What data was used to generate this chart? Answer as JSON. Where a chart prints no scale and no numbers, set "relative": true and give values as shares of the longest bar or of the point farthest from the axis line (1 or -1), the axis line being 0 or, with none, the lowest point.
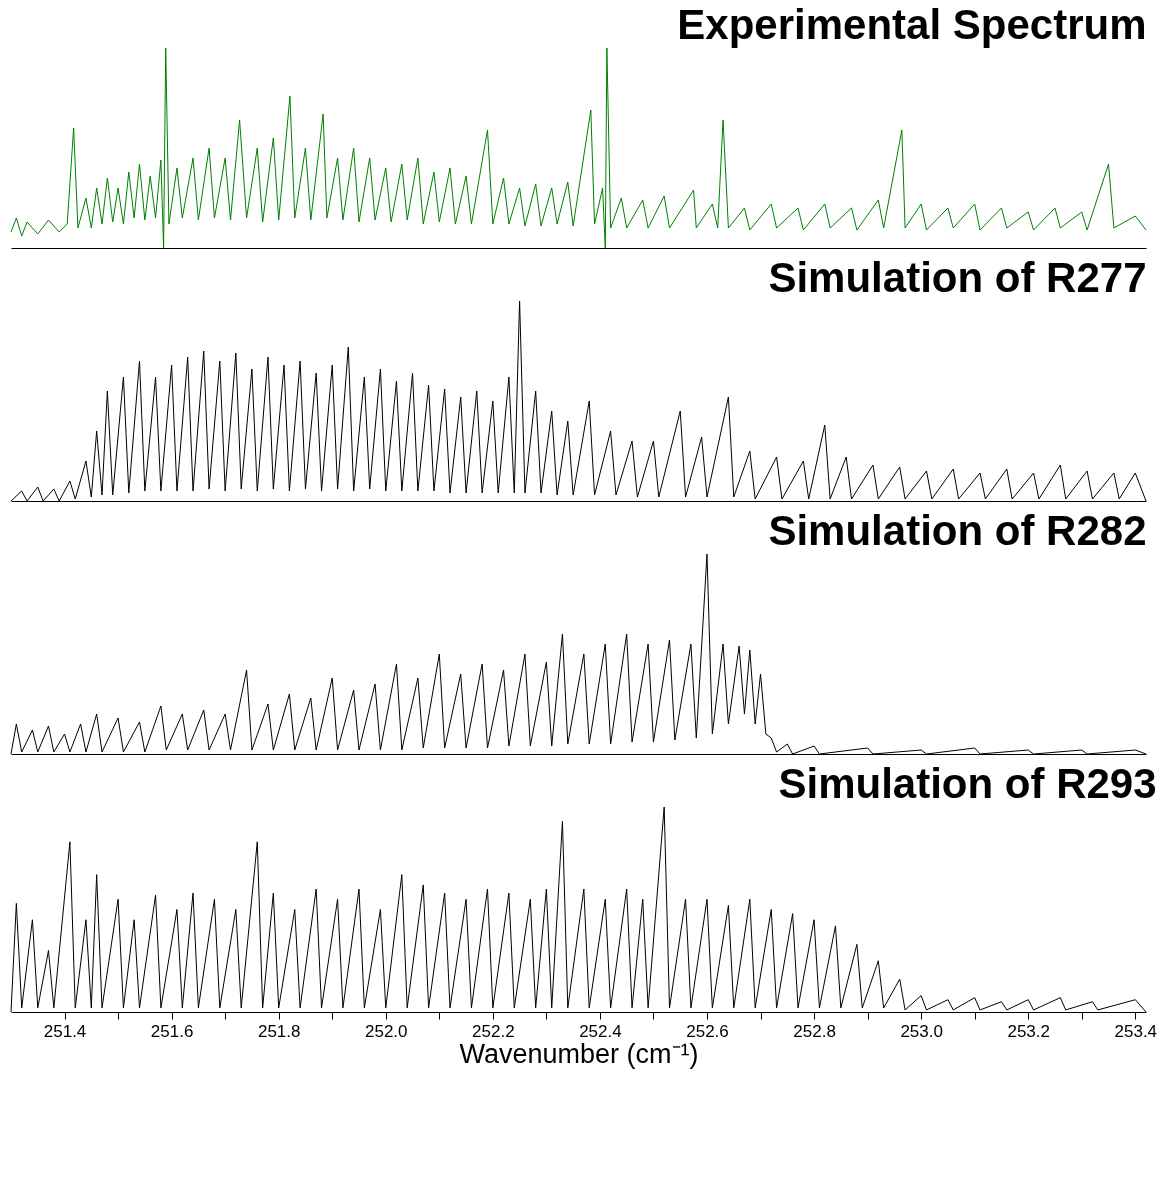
{
  "chart_data": [
    {
      "type": "line",
      "title": "Experimental Spectrum",
      "relative": true,
      "tick_labels": false,
      "xlim": [
        251.3,
        253.42
      ],
      "series": [
        {
          "color": "#008000",
          "x": [
            251.3,
            251.31,
            251.32,
            251.33,
            251.35,
            251.37,
            251.39,
            251.405,
            251.417,
            251.425,
            251.44,
            251.45,
            251.46,
            251.47,
            251.48,
            251.49,
            251.5,
            251.51,
            251.52,
            251.53,
            251.54,
            251.55,
            251.56,
            251.57,
            251.58,
            251.585,
            251.589,
            251.595,
            251.61,
            251.62,
            251.64,
            251.65,
            251.67,
            251.68,
            251.7,
            251.71,
            251.727,
            251.74,
            251.76,
            251.77,
            251.79,
            251.8,
            251.821,
            251.83,
            251.85,
            251.86,
            251.883,
            251.89,
            251.91,
            251.92,
            251.94,
            251.95,
            251.97,
            251.98,
            252.0,
            252.01,
            252.03,
            252.04,
            252.06,
            252.07,
            252.09,
            252.1,
            252.12,
            252.13,
            252.15,
            252.16,
            252.19,
            252.2,
            252.22,
            252.23,
            252.25,
            252.26,
            252.28,
            252.29,
            252.31,
            252.32,
            252.34,
            252.35,
            252.383,
            252.39,
            252.405,
            252.41,
            252.413,
            252.42,
            252.44,
            252.45,
            252.48,
            252.49,
            252.52,
            252.53,
            252.575,
            252.58,
            252.61,
            252.62,
            252.63,
            252.64,
            252.67,
            252.68,
            252.72,
            252.73,
            252.77,
            252.78,
            252.82,
            252.83,
            252.87,
            252.88,
            252.92,
            252.93,
            252.964,
            252.97,
            253.0,
            253.01,
            253.05,
            253.06,
            253.1,
            253.11,
            253.15,
            253.16,
            253.2,
            253.21,
            253.25,
            253.26,
            253.3,
            253.31,
            253.35,
            253.36,
            253.4,
            253.42
          ],
          "values": [
            0.08,
            0.15,
            0.06,
            0.13,
            0.07,
            0.14,
            0.08,
            0.12,
            0.6,
            0.1,
            0.25,
            0.1,
            0.3,
            0.12,
            0.35,
            0.13,
            0.3,
            0.12,
            0.38,
            0.15,
            0.42,
            0.14,
            0.36,
            0.15,
            0.44,
            0.0,
            1.0,
            0.12,
            0.4,
            0.15,
            0.45,
            0.14,
            0.5,
            0.15,
            0.45,
            0.14,
            0.64,
            0.15,
            0.5,
            0.13,
            0.55,
            0.14,
            0.76,
            0.15,
            0.5,
            0.14,
            0.67,
            0.15,
            0.45,
            0.14,
            0.5,
            0.13,
            0.45,
            0.14,
            0.4,
            0.13,
            0.42,
            0.14,
            0.45,
            0.12,
            0.38,
            0.13,
            0.4,
            0.12,
            0.36,
            0.12,
            0.59,
            0.12,
            0.35,
            0.12,
            0.3,
            0.11,
            0.32,
            0.11,
            0.3,
            0.12,
            0.33,
            0.11,
            0.69,
            0.12,
            0.3,
            0.0,
            1.0,
            0.1,
            0.25,
            0.1,
            0.24,
            0.1,
            0.26,
            0.1,
            0.29,
            0.1,
            0.22,
            0.1,
            0.64,
            0.1,
            0.2,
            0.09,
            0.22,
            0.1,
            0.2,
            0.09,
            0.22,
            0.1,
            0.2,
            0.09,
            0.24,
            0.1,
            0.59,
            0.1,
            0.22,
            0.09,
            0.2,
            0.1,
            0.22,
            0.09,
            0.2,
            0.1,
            0.18,
            0.09,
            0.2,
            0.1,
            0.18,
            0.09,
            0.42,
            0.1,
            0.16,
            0.09
          ]
        }
      ]
    },
    {
      "type": "line",
      "title": "Simulation of R277",
      "relative": true,
      "tick_labels": false,
      "xlim": [
        251.3,
        253.42
      ],
      "series": [
        {
          "color": "#000000",
          "x": [
            251.3,
            251.32,
            251.33,
            251.35,
            251.36,
            251.38,
            251.39,
            251.41,
            251.42,
            251.44,
            251.45,
            251.46,
            251.47,
            251.48,
            251.49,
            251.51,
            251.52,
            251.54,
            251.55,
            251.57,
            251.58,
            251.6,
            251.61,
            251.63,
            251.64,
            251.66,
            251.67,
            251.69,
            251.7,
            251.72,
            251.73,
            251.75,
            251.76,
            251.78,
            251.79,
            251.81,
            251.82,
            251.84,
            251.85,
            251.87,
            251.88,
            251.9,
            251.91,
            251.93,
            251.94,
            251.96,
            251.97,
            251.99,
            252.0,
            252.02,
            252.03,
            252.05,
            252.06,
            252.08,
            252.09,
            252.11,
            252.12,
            252.14,
            252.15,
            252.17,
            252.18,
            252.2,
            252.21,
            252.23,
            252.24,
            252.25,
            252.26,
            252.28,
            252.29,
            252.31,
            252.32,
            252.34,
            252.35,
            252.38,
            252.39,
            252.42,
            252.43,
            252.46,
            252.47,
            252.5,
            252.51,
            252.55,
            252.56,
            252.59,
            252.6,
            252.64,
            252.65,
            252.68,
            252.69,
            252.73,
            252.74,
            252.78,
            252.79,
            252.82,
            252.83,
            252.86,
            252.87,
            252.91,
            252.92,
            252.96,
            252.97,
            253.01,
            253.02,
            253.06,
            253.07,
            253.11,
            253.12,
            253.16,
            253.17,
            253.21,
            253.22,
            253.26,
            253.27,
            253.31,
            253.32,
            253.36,
            253.37,
            253.4,
            253.42
          ],
          "values": [
            0.0,
            0.05,
            0.0,
            0.07,
            0.0,
            0.06,
            0.0,
            0.1,
            0.01,
            0.2,
            0.02,
            0.35,
            0.03,
            0.55,
            0.03,
            0.62,
            0.04,
            0.7,
            0.05,
            0.62,
            0.05,
            0.68,
            0.05,
            0.72,
            0.05,
            0.75,
            0.06,
            0.7,
            0.05,
            0.74,
            0.06,
            0.66,
            0.05,
            0.72,
            0.06,
            0.68,
            0.05,
            0.7,
            0.06,
            0.64,
            0.05,
            0.68,
            0.06,
            0.77,
            0.05,
            0.62,
            0.06,
            0.66,
            0.05,
            0.6,
            0.05,
            0.64,
            0.05,
            0.58,
            0.05,
            0.56,
            0.04,
            0.52,
            0.04,
            0.55,
            0.04,
            0.5,
            0.04,
            0.62,
            0.04,
            1.0,
            0.04,
            0.55,
            0.04,
            0.45,
            0.03,
            0.4,
            0.03,
            0.5,
            0.03,
            0.35,
            0.03,
            0.3,
            0.02,
            0.3,
            0.02,
            0.45,
            0.02,
            0.32,
            0.02,
            0.52,
            0.02,
            0.25,
            0.01,
            0.22,
            0.01,
            0.2,
            0.01,
            0.38,
            0.01,
            0.22,
            0.01,
            0.18,
            0.01,
            0.17,
            0.01,
            0.15,
            0.01,
            0.16,
            0.01,
            0.14,
            0.01,
            0.16,
            0.01,
            0.14,
            0.01,
            0.18,
            0.01,
            0.15,
            0.01,
            0.14,
            0.01,
            0.14,
            0.0
          ]
        }
      ]
    },
    {
      "type": "line",
      "title": "Simulation of R282",
      "relative": true,
      "tick_labels": false,
      "xlim": [
        251.3,
        253.42
      ],
      "series": [
        {
          "color": "#000000",
          "x": [
            251.3,
            251.31,
            251.32,
            251.34,
            251.35,
            251.37,
            251.38,
            251.4,
            251.41,
            251.43,
            251.44,
            251.46,
            251.47,
            251.5,
            251.51,
            251.54,
            251.55,
            251.58,
            251.59,
            251.62,
            251.63,
            251.66,
            251.67,
            251.7,
            251.71,
            251.74,
            251.75,
            251.78,
            251.79,
            251.82,
            251.83,
            251.86,
            251.87,
            251.9,
            251.91,
            251.94,
            251.95,
            251.98,
            251.99,
            252.02,
            252.03,
            252.06,
            252.07,
            252.1,
            252.11,
            252.14,
            252.15,
            252.18,
            252.19,
            252.22,
            252.23,
            252.26,
            252.27,
            252.3,
            252.31,
            252.33,
            252.34,
            252.37,
            252.38,
            252.41,
            252.42,
            252.45,
            252.46,
            252.49,
            252.5,
            252.53,
            252.54,
            252.57,
            252.58,
            252.6,
            252.61,
            252.63,
            252.64,
            252.66,
            252.67,
            252.68,
            252.69,
            252.7,
            252.71,
            252.72,
            252.73,
            252.75,
            252.76,
            252.8,
            252.81,
            252.9,
            252.91,
            253.0,
            253.01,
            253.1,
            253.11,
            253.2,
            253.21,
            253.3,
            253.31,
            253.4,
            253.42
          ],
          "values": [
            0.0,
            0.15,
            0.01,
            0.12,
            0.01,
            0.14,
            0.01,
            0.1,
            0.01,
            0.15,
            0.01,
            0.2,
            0.01,
            0.18,
            0.01,
            0.16,
            0.01,
            0.24,
            0.02,
            0.2,
            0.02,
            0.22,
            0.02,
            0.2,
            0.02,
            0.42,
            0.02,
            0.25,
            0.02,
            0.3,
            0.02,
            0.28,
            0.02,
            0.38,
            0.02,
            0.32,
            0.02,
            0.35,
            0.02,
            0.45,
            0.02,
            0.38,
            0.03,
            0.5,
            0.03,
            0.4,
            0.03,
            0.45,
            0.03,
            0.42,
            0.04,
            0.5,
            0.04,
            0.46,
            0.04,
            0.6,
            0.05,
            0.5,
            0.05,
            0.55,
            0.05,
            0.6,
            0.06,
            0.55,
            0.06,
            0.57,
            0.07,
            0.55,
            0.08,
            1.0,
            0.1,
            0.55,
            0.15,
            0.54,
            0.2,
            0.52,
            0.15,
            0.4,
            0.1,
            0.08,
            0.01,
            0.05,
            0.0,
            0.04,
            0.0,
            0.03,
            0.0,
            0.02,
            0.0,
            0.03,
            0.0,
            0.02,
            0.0,
            0.02,
            0.0,
            0.02,
            0.0
          ]
        }
      ]
    },
    {
      "type": "line",
      "title": "Simulation of R293",
      "relative": true,
      "tick_labels": "x",
      "xlabel": "Wavenumber (cm⁻¹)",
      "xlim": [
        251.3,
        253.42
      ],
      "xticks": [
        {
          "value": 251.4,
          "label": "251.4"
        },
        {
          "value": 251.5,
          "label": null
        },
        {
          "value": 251.6,
          "label": "251.6"
        },
        {
          "value": 251.7,
          "label": null
        },
        {
          "value": 251.8,
          "label": "251.8"
        },
        {
          "value": 251.9,
          "label": null
        },
        {
          "value": 252,
          "label": "252.0"
        },
        {
          "value": 252.1,
          "label": null
        },
        {
          "value": 252.2,
          "label": "252.2"
        },
        {
          "value": 252.3,
          "label": null
        },
        {
          "value": 252.4,
          "label": "252.4"
        },
        {
          "value": 252.5,
          "label": null
        },
        {
          "value": 252.6,
          "label": "252.6"
        },
        {
          "value": 252.7,
          "label": null
        },
        {
          "value": 252.8,
          "label": "252.8"
        },
        {
          "value": 252.9,
          "label": null
        },
        {
          "value": 253,
          "label": "253.0"
        },
        {
          "value": 253.1,
          "label": null
        },
        {
          "value": 253.2,
          "label": "253.2"
        },
        {
          "value": 253.3,
          "label": null
        },
        {
          "value": 253.4,
          "label": "253.4"
        }
      ],
      "series": [
        {
          "color": "#000000",
          "x": [
            251.3,
            251.31,
            251.32,
            251.34,
            251.35,
            251.37,
            251.38,
            251.41,
            251.42,
            251.44,
            251.45,
            251.46,
            251.47,
            251.5,
            251.51,
            251.53,
            251.54,
            251.57,
            251.58,
            251.61,
            251.62,
            251.64,
            251.65,
            251.68,
            251.69,
            251.72,
            251.73,
            251.76,
            251.77,
            251.79,
            251.8,
            251.83,
            251.84,
            251.87,
            251.88,
            251.91,
            251.92,
            251.95,
            251.96,
            251.99,
            252.0,
            252.03,
            252.04,
            252.07,
            252.08,
            252.11,
            252.12,
            252.15,
            252.16,
            252.19,
            252.2,
            252.23,
            252.24,
            252.27,
            252.28,
            252.3,
            252.31,
            252.33,
            252.34,
            252.37,
            252.38,
            252.41,
            252.42,
            252.45,
            252.46,
            252.48,
            252.49,
            252.52,
            252.53,
            252.56,
            252.57,
            252.6,
            252.61,
            252.64,
            252.65,
            252.68,
            252.69,
            252.72,
            252.73,
            252.76,
            252.77,
            252.8,
            252.81,
            252.84,
            252.85,
            252.88,
            252.89,
            252.92,
            252.93,
            252.96,
            252.97,
            253.0,
            253.01,
            253.05,
            253.06,
            253.1,
            253.11,
            253.15,
            253.16,
            253.2,
            253.21,
            253.26,
            253.27,
            253.32,
            253.33,
            253.4,
            253.42
          ],
          "values": [
            0.0,
            0.53,
            0.02,
            0.45,
            0.02,
            0.3,
            0.02,
            0.83,
            0.02,
            0.45,
            0.02,
            0.67,
            0.02,
            0.55,
            0.02,
            0.45,
            0.02,
            0.57,
            0.02,
            0.5,
            0.02,
            0.58,
            0.02,
            0.55,
            0.02,
            0.5,
            0.02,
            0.83,
            0.02,
            0.58,
            0.02,
            0.5,
            0.02,
            0.6,
            0.02,
            0.55,
            0.02,
            0.6,
            0.02,
            0.5,
            0.02,
            0.67,
            0.02,
            0.62,
            0.02,
            0.58,
            0.02,
            0.55,
            0.02,
            0.6,
            0.02,
            0.58,
            0.02,
            0.55,
            0.02,
            0.6,
            0.02,
            0.93,
            0.02,
            0.6,
            0.02,
            0.55,
            0.02,
            0.6,
            0.02,
            0.55,
            0.02,
            1.0,
            0.02,
            0.55,
            0.02,
            0.55,
            0.02,
            0.52,
            0.02,
            0.55,
            0.02,
            0.5,
            0.02,
            0.48,
            0.02,
            0.45,
            0.02,
            0.42,
            0.02,
            0.33,
            0.02,
            0.25,
            0.02,
            0.16,
            0.01,
            0.08,
            0.01,
            0.06,
            0.01,
            0.07,
            0.01,
            0.05,
            0.01,
            0.06,
            0.01,
            0.07,
            0.01,
            0.05,
            0.01,
            0.06,
            0.0
          ]
        }
      ]
    }
  ]
}
